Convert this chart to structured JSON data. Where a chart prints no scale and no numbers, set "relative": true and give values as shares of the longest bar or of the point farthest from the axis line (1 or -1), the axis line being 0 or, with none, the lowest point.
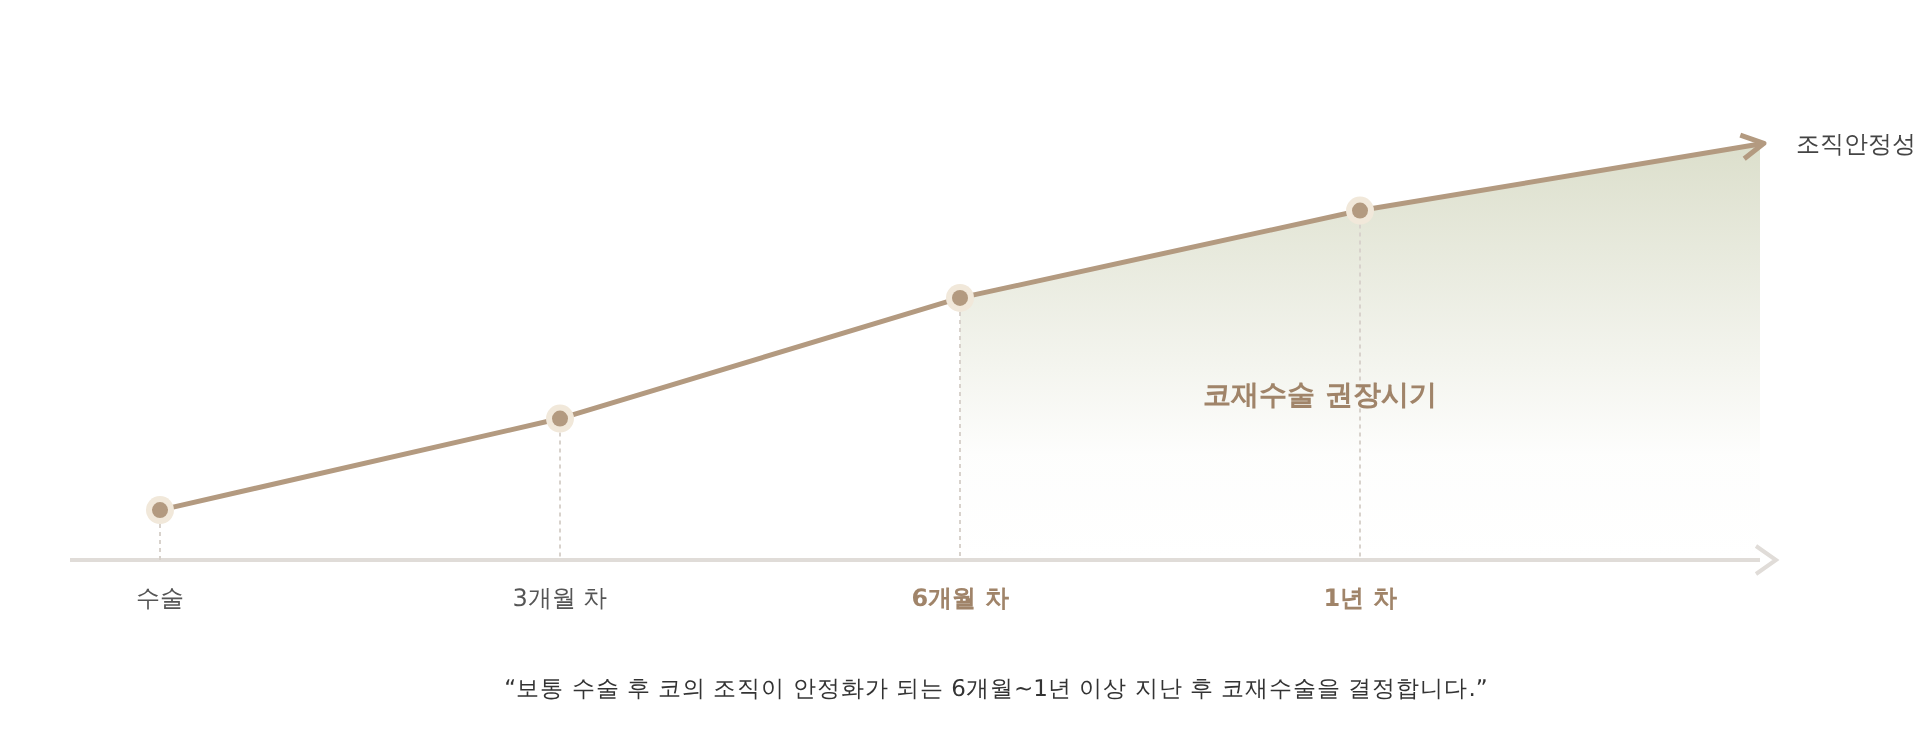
{
  "chart_data": {
    "type": "line",
    "relative": true,
    "categories": [
      "수술",
      "3개월 차",
      "6개월 차",
      "1년 차",
      null
    ],
    "series": [
      {
        "color": "#b39a80",
        "values": [
          0.12,
          0.34,
          0.63,
          0.84,
          1.0
        ]
      },
      {
        "type": "area",
        "color": "#dcdfcc",
        "values": [
          null,
          null,
          0.63,
          0.84,
          1.0
        ]
      }
    ],
    "marker": "circle",
    "ylabel": "조직안정성",
    "ref_lines": [
      {
        "axis": "x",
        "value": "수술",
        "color": "#d8d2cc",
        "line_style": "dotted"
      },
      {
        "axis": "x",
        "value": "3개월 차",
        "color": "#d8d2cc",
        "line_style": "dotted"
      },
      {
        "axis": "x",
        "value": "6개월 차",
        "color": "#d8d2cc",
        "line_style": "dotted"
      },
      {
        "axis": "x",
        "value": "1년 차",
        "color": "#d8d2cc",
        "line_style": "dotted"
      }
    ],
    "annotations": [
      "코재수술 권장시기",
      "“보통 수술 후 코의 조직이 안정화가 되는 6개월~1년 이상 지난 후 코재수술을 결정합니다.”"
    ]
  }
}
